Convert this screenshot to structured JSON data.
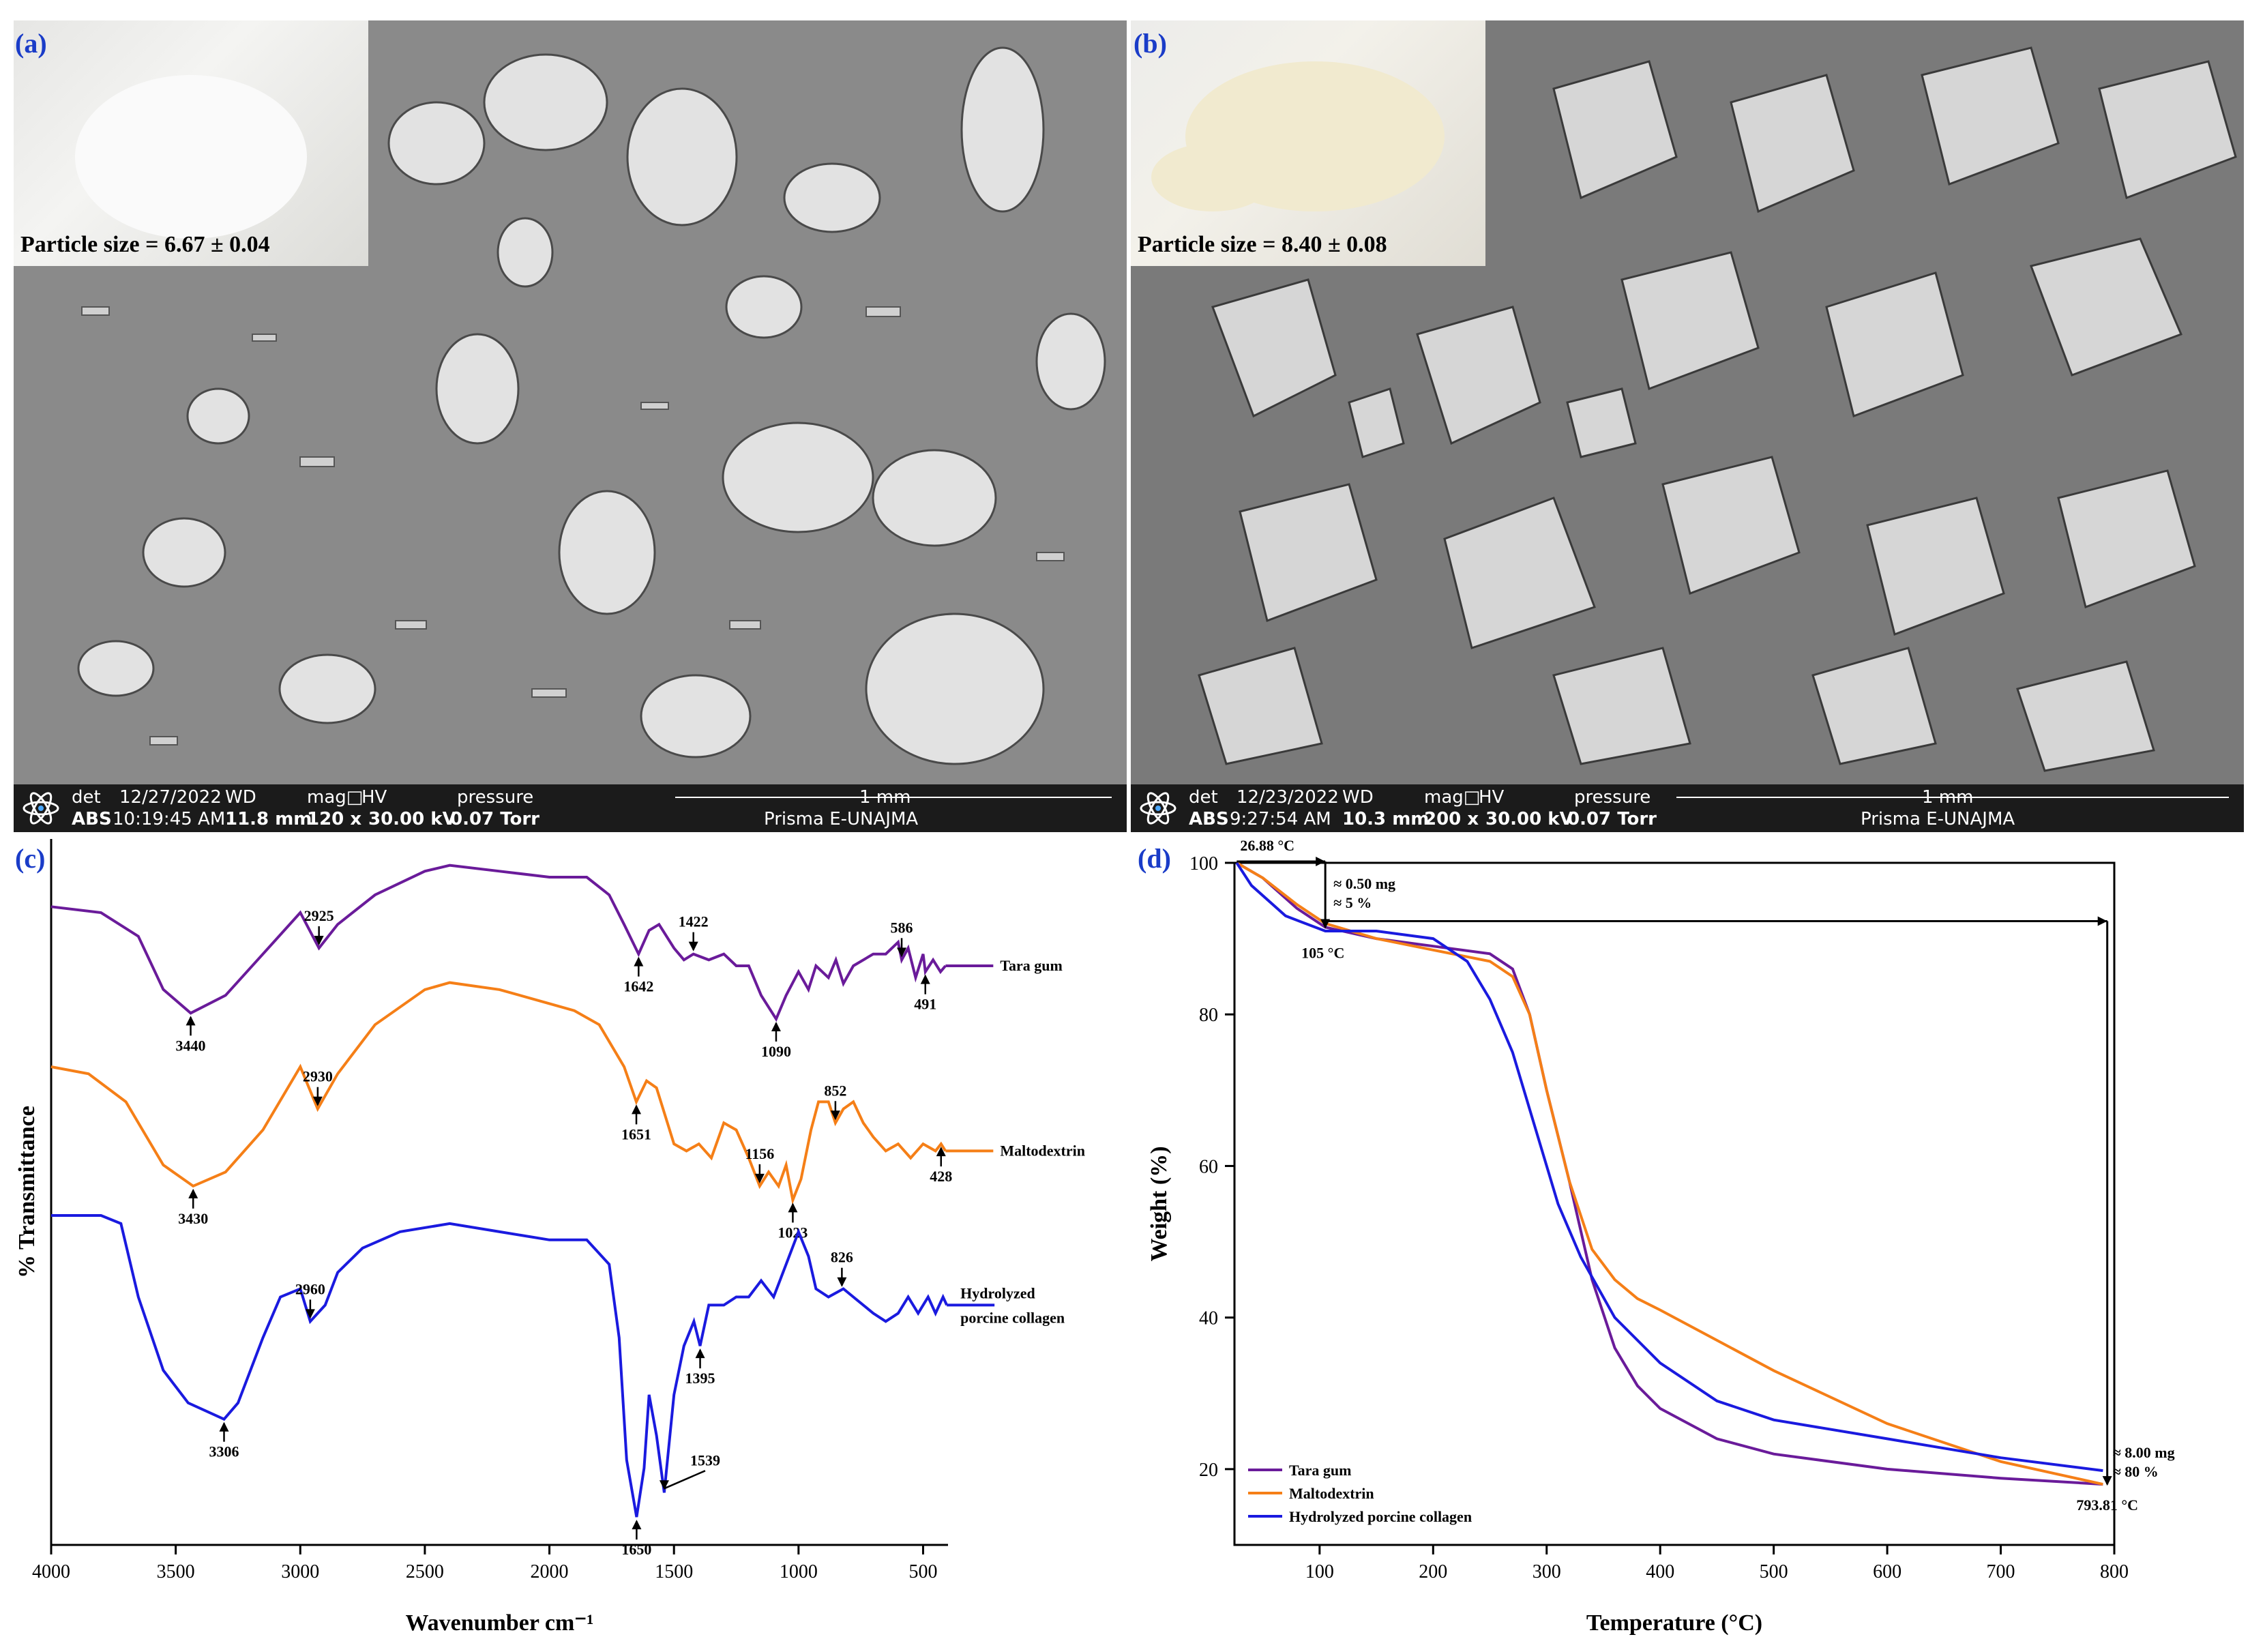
{
  "panels": {
    "a": {
      "label": "(a)",
      "inset_caption": "Particle size = 6.67 ± 0.04",
      "databar": {
        "det_label": "det",
        "date": "12/27/2022",
        "wd_label": "WD",
        "mag_label": "mag□",
        "hv_label": "HV",
        "pressure_label": "pressure",
        "scale": "1 mm",
        "det": "ABS",
        "time": "10:19:45 AM",
        "wd": "11.8 mm",
        "mag": "120 x",
        "hv": "30.00 kV",
        "pressure": "0.07 Torr",
        "instrument": "Prisma E-UNAJMA"
      }
    },
    "b": {
      "label": "(b)",
      "inset_caption": "Particle size = 8.40 ± 0.08",
      "databar": {
        "det_label": "det",
        "date": "12/23/2022",
        "wd_label": "WD",
        "mag_label": "mag□",
        "hv_label": "HV",
        "pressure_label": "pressure",
        "scale": "1 mm",
        "det": "ABS",
        "time": "9:27:54 AM",
        "wd": "10.3 mm",
        "mag": "200 x",
        "hv": "30.00 kV",
        "pressure": "0.07 Torr",
        "instrument": "Prisma E-UNAJMA"
      }
    },
    "c": {
      "label": "(c)"
    },
    "d": {
      "label": "(d)"
    }
  },
  "colors": {
    "tara": "#6a1b9a",
    "malto": "#f57f17",
    "collagen": "#1a1adf",
    "label_blue": "#1a3cc8"
  },
  "chart_data": [
    {
      "type": "line",
      "title": "",
      "xlabel": "Wavenumber cm⁻¹",
      "ylabel": "% Transmittance",
      "xlim": [
        4000,
        400
      ],
      "x_reversed": true,
      "xticks": [
        4000,
        3500,
        3000,
        2500,
        2000,
        1500,
        1000,
        500
      ],
      "series": [
        {
          "name": "Tara gum",
          "color": "#6a1b9a",
          "points": [
            [
              4000,
              92
            ],
            [
              3800,
              91
            ],
            [
              3650,
              87
            ],
            [
              3550,
              78
            ],
            [
              3440,
              74
            ],
            [
              3300,
              77
            ],
            [
              3150,
              84
            ],
            [
              3000,
              91
            ],
            [
              2925,
              85
            ],
            [
              2850,
              89
            ],
            [
              2700,
              94
            ],
            [
              2500,
              98
            ],
            [
              2400,
              99
            ],
            [
              2200,
              98
            ],
            [
              2000,
              97
            ],
            [
              1850,
              97
            ],
            [
              1760,
              94
            ],
            [
              1700,
              89
            ],
            [
              1642,
              84
            ],
            [
              1600,
              88
            ],
            [
              1560,
              89
            ],
            [
              1500,
              85
            ],
            [
              1460,
              83
            ],
            [
              1422,
              84
            ],
            [
              1360,
              83
            ],
            [
              1300,
              84
            ],
            [
              1250,
              82
            ],
            [
              1200,
              82
            ],
            [
              1150,
              77
            ],
            [
              1090,
              73
            ],
            [
              1050,
              77
            ],
            [
              1000,
              81
            ],
            [
              960,
              78
            ],
            [
              930,
              82
            ],
            [
              880,
              80
            ],
            [
              850,
              83
            ],
            [
              820,
              79
            ],
            [
              780,
              82
            ],
            [
              700,
              84
            ],
            [
              650,
              84
            ],
            [
              600,
              86
            ],
            [
              586,
              83
            ],
            [
              560,
              85
            ],
            [
              530,
              80
            ],
            [
              500,
              84
            ],
            [
              491,
              81
            ],
            [
              460,
              83
            ],
            [
              430,
              81
            ],
            [
              410,
              82
            ]
          ],
          "peaks": [
            {
              "x": 3440,
              "label": "3440"
            },
            {
              "x": 2925,
              "label": "2925"
            },
            {
              "x": 1642,
              "label": "1642"
            },
            {
              "x": 1422,
              "label": "1422"
            },
            {
              "x": 1090,
              "label": "1090"
            },
            {
              "x": 586,
              "label": "586"
            },
            {
              "x": 491,
              "label": "491"
            }
          ]
        },
        {
          "name": "Maltodextrin",
          "color": "#f57f17",
          "points": [
            [
              4000,
              79
            ],
            [
              3850,
              78
            ],
            [
              3700,
              74
            ],
            [
              3550,
              65
            ],
            [
              3430,
              62
            ],
            [
              3300,
              64
            ],
            [
              3150,
              70
            ],
            [
              3000,
              79
            ],
            [
              2930,
              73
            ],
            [
              2850,
              78
            ],
            [
              2700,
              85
            ],
            [
              2500,
              90
            ],
            [
              2400,
              91
            ],
            [
              2200,
              90
            ],
            [
              2000,
              88
            ],
            [
              1900,
              87
            ],
            [
              1800,
              85
            ],
            [
              1700,
              79
            ],
            [
              1651,
              74
            ],
            [
              1610,
              77
            ],
            [
              1570,
              76
            ],
            [
              1500,
              68
            ],
            [
              1450,
              67
            ],
            [
              1400,
              68
            ],
            [
              1350,
              66
            ],
            [
              1300,
              71
            ],
            [
              1250,
              70
            ],
            [
              1200,
              66
            ],
            [
              1156,
              62
            ],
            [
              1120,
              64
            ],
            [
              1080,
              62
            ],
            [
              1050,
              65
            ],
            [
              1023,
              60
            ],
            [
              990,
              63
            ],
            [
              950,
              70
            ],
            [
              920,
              74
            ],
            [
              880,
              74
            ],
            [
              852,
              71
            ],
            [
              820,
              73
            ],
            [
              780,
              74
            ],
            [
              740,
              71
            ],
            [
              700,
              69
            ],
            [
              650,
              67
            ],
            [
              600,
              68
            ],
            [
              550,
              66
            ],
            [
              500,
              68
            ],
            [
              450,
              67
            ],
            [
              428,
              68
            ],
            [
              410,
              67
            ]
          ],
          "peaks": [
            {
              "x": 3430,
              "label": "3430"
            },
            {
              "x": 2930,
              "label": "2930"
            },
            {
              "x": 1651,
              "label": "1651"
            },
            {
              "x": 1156,
              "label": "1156"
            },
            {
              "x": 1023,
              "label": "1023"
            },
            {
              "x": 852,
              "label": "852"
            },
            {
              "x": 428,
              "label": "428"
            }
          ]
        },
        {
          "name": "Hydrolyzed porcine collagen",
          "color": "#1a1adf",
          "points": [
            [
              4000,
              60
            ],
            [
              3800,
              60
            ],
            [
              3720,
              59
            ],
            [
              3650,
              50
            ],
            [
              3550,
              41
            ],
            [
              3450,
              37
            ],
            [
              3306,
              35
            ],
            [
              3250,
              37
            ],
            [
              3150,
              45
            ],
            [
              3080,
              50
            ],
            [
              3000,
              51
            ],
            [
              2960,
              47
            ],
            [
              2900,
              49
            ],
            [
              2850,
              53
            ],
            [
              2750,
              56
            ],
            [
              2600,
              58
            ],
            [
              2400,
              59
            ],
            [
              2200,
              58
            ],
            [
              2000,
              57
            ],
            [
              1850,
              57
            ],
            [
              1760,
              54
            ],
            [
              1720,
              45
            ],
            [
              1690,
              30
            ],
            [
              1650,
              23
            ],
            [
              1620,
              29
            ],
            [
              1600,
              38
            ],
            [
              1570,
              33
            ],
            [
              1539,
              26
            ],
            [
              1500,
              38
            ],
            [
              1460,
              44
            ],
            [
              1420,
              47
            ],
            [
              1395,
              44
            ],
            [
              1360,
              49
            ],
            [
              1300,
              49
            ],
            [
              1250,
              50
            ],
            [
              1200,
              50
            ],
            [
              1150,
              52
            ],
            [
              1100,
              50
            ],
            [
              1050,
              54
            ],
            [
              1000,
              58
            ],
            [
              960,
              55
            ],
            [
              930,
              51
            ],
            [
              880,
              50
            ],
            [
              820,
              51
            ],
            [
              780,
              50
            ],
            [
              700,
              48
            ],
            [
              650,
              47
            ],
            [
              600,
              48
            ],
            [
              560,
              50
            ],
            [
              520,
              48
            ],
            [
              480,
              50
            ],
            [
              450,
              48
            ],
            [
              420,
              50
            ],
            [
              405,
              49
            ]
          ],
          "peaks": [
            {
              "x": 3306,
              "label": "3306"
            },
            {
              "x": 2960,
              "label": "2960"
            },
            {
              "x": 1650,
              "label": "1650"
            },
            {
              "x": 1539,
              "label": "1539"
            },
            {
              "x": 1395,
              "label": "1395"
            },
            {
              "x": 826,
              "label": "826"
            }
          ]
        }
      ]
    },
    {
      "type": "line",
      "title": "",
      "xlabel": "Temperature (°C)",
      "ylabel": "Weight (%)",
      "xlim": [
        25,
        800
      ],
      "ylim": [
        10,
        100
      ],
      "xticks": [
        100,
        200,
        300,
        400,
        500,
        600,
        700,
        800
      ],
      "yticks": [
        20,
        40,
        60,
        80,
        100
      ],
      "legend_position": "bottom-left",
      "annotations": [
        "26.88 °C",
        "≈ 0.50 mg",
        "≈ 5 %",
        "105 °C",
        "≈ 8.00 mg",
        "≈ 80 %",
        "793.81 °C"
      ],
      "series": [
        {
          "name": "Tara gum",
          "color": "#6a1b9a",
          "points": [
            [
              27,
              100
            ],
            [
              50,
              98
            ],
            [
              80,
              94
            ],
            [
              105,
              91.5
            ],
            [
              150,
              90
            ],
            [
              200,
              89
            ],
            [
              250,
              88
            ],
            [
              270,
              86
            ],
            [
              285,
              80
            ],
            [
              300,
              70
            ],
            [
              320,
              58
            ],
            [
              340,
              45
            ],
            [
              360,
              36
            ],
            [
              380,
              31
            ],
            [
              400,
              28
            ],
            [
              450,
              24
            ],
            [
              500,
              22
            ],
            [
              600,
              20
            ],
            [
              700,
              18.8
            ],
            [
              790,
              18
            ]
          ]
        },
        {
          "name": "Maltodextrin",
          "color": "#f57f17",
          "points": [
            [
              27,
              100
            ],
            [
              50,
              98
            ],
            [
              80,
              94.5
            ],
            [
              105,
              92
            ],
            [
              150,
              90
            ],
            [
              200,
              88.5
            ],
            [
              250,
              87
            ],
            [
              270,
              85
            ],
            [
              285,
              80
            ],
            [
              300,
              70
            ],
            [
              320,
              58
            ],
            [
              340,
              49
            ],
            [
              360,
              45
            ],
            [
              380,
              42.5
            ],
            [
              400,
              41
            ],
            [
              450,
              37
            ],
            [
              500,
              33
            ],
            [
              600,
              26
            ],
            [
              700,
              21
            ],
            [
              790,
              18
            ]
          ]
        },
        {
          "name": "Hydrolyzed porcine collagen",
          "color": "#1a1adf",
          "points": [
            [
              27,
              100
            ],
            [
              40,
              97
            ],
            [
              70,
              93
            ],
            [
              105,
              91
            ],
            [
              150,
              91
            ],
            [
              200,
              90
            ],
            [
              230,
              87
            ],
            [
              250,
              82
            ],
            [
              270,
              75
            ],
            [
              290,
              65
            ],
            [
              310,
              55
            ],
            [
              330,
              48
            ],
            [
              360,
              40
            ],
            [
              400,
              34
            ],
            [
              450,
              29
            ],
            [
              500,
              26.5
            ],
            [
              600,
              24
            ],
            [
              700,
              21.5
            ],
            [
              790,
              19.8
            ]
          ]
        }
      ]
    }
  ]
}
